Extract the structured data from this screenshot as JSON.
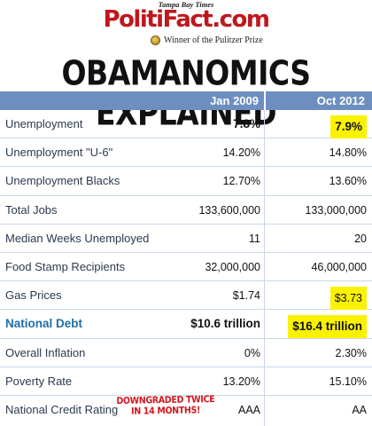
{
  "header": {
    "paper": "Tampa Bay Times",
    "logo_part1": "PolitiFact",
    "logo_part2": ".com",
    "pulitzer": "Winner of the Pulitzer Prize"
  },
  "title": "OBAMANOMICS EXPLAINED",
  "columns": {
    "col1": "Jan 2009",
    "col2": "Oct 2012"
  },
  "rows": [
    {
      "label": "Unemployment",
      "v1": "7.8%",
      "v2": "7.9%"
    },
    {
      "label": "Unemployment \"U-6\"",
      "v1": "14.20%",
      "v2": "14.80%"
    },
    {
      "label": "Unemployment Blacks",
      "v1": "12.70%",
      "v2": "13.60%"
    },
    {
      "label": "Total Jobs",
      "v1": "133,600,000",
      "v2": "133,000,000"
    },
    {
      "label": "Median Weeks Unemployed",
      "v1": "11",
      "v2": "20"
    },
    {
      "label": "Food Stamp Recipients",
      "v1": "32,000,000",
      "v2": "46,000,000"
    },
    {
      "label": "Gas Prices",
      "v1": "$1.74",
      "v2": "$3.73"
    },
    {
      "label": "National Debt",
      "v1": "$10.6 trillion",
      "v2": "$16.4 trillion"
    },
    {
      "label": "Overall Inflation",
      "v1": "0%",
      "v2": "2.30%"
    },
    {
      "label": "Poverty Rate",
      "v1": "13.20%",
      "v2": "15.10%"
    },
    {
      "label": "National Credit Rating",
      "v1": "AAA",
      "v2": "AA"
    }
  ],
  "stamp": {
    "line1": "DOWNGRADED TWICE",
    "line2": "IN 14 MONTHS!"
  },
  "colors": {
    "header_bg": "#6d8fbf",
    "highlight": "#fbf200",
    "logo_red": "#c0171d",
    "debt_blue": "#1f6ea8"
  }
}
